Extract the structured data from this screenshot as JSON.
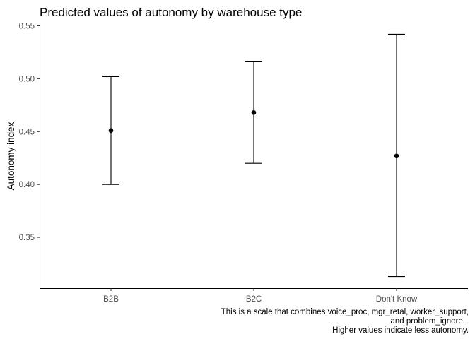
{
  "chart_data": {
    "type": "scatter",
    "title": "Predicted values of autonomy by warehouse type",
    "xlabel": "",
    "ylabel": "Autonomy index",
    "categories": [
      "B2B",
      "B2C",
      "Don't Know"
    ],
    "values": [
      0.451,
      0.468,
      0.427
    ],
    "ci_low": [
      0.4,
      0.42,
      0.313
    ],
    "ci_high": [
      0.502,
      0.516,
      0.542
    ],
    "ylim": [
      0.302,
      0.553
    ],
    "yticks": [
      0.35,
      0.4,
      0.45,
      0.5,
      0.55
    ],
    "ytick_labels": [
      "0.35",
      "0.40",
      "0.45",
      "0.50",
      "0.55"
    ],
    "grid": false,
    "caption": [
      "This is a scale that combines voice_proc, mgr_retal, worker_support,",
      "and problem_ignore.",
      "Higher values indicate less autonomy."
    ],
    "colors": {
      "mark": "#000000",
      "axis": "#000000",
      "tick_text": "#4d4d4d"
    }
  }
}
